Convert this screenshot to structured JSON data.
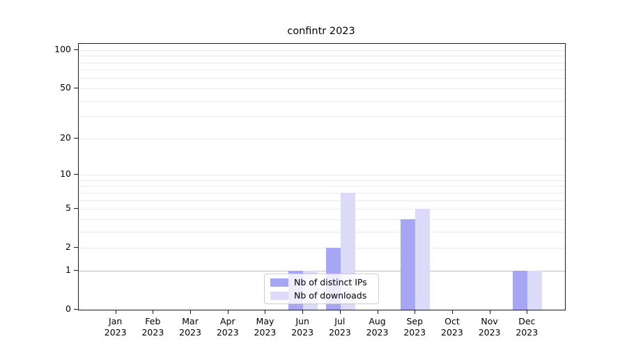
{
  "chart_data": {
    "type": "bar",
    "title": "confintr 2023",
    "categories": [
      "Jan 2023",
      "Feb 2023",
      "Mar 2023",
      "Apr 2023",
      "May 2023",
      "Jun 2023",
      "Jul 2023",
      "Aug 2023",
      "Sep 2023",
      "Oct 2023",
      "Nov 2023",
      "Dec 2023"
    ],
    "series": [
      {
        "name": "Nb of distinct IPs",
        "color": "#a6a6f5",
        "values": [
          0,
          0,
          0,
          0,
          0,
          1,
          2,
          0,
          4,
          0,
          0,
          1
        ]
      },
      {
        "name": "Nb of downloads",
        "color": "#dbdbf9",
        "values": [
          0,
          0,
          0,
          0,
          0,
          1,
          7,
          0,
          5,
          0,
          0,
          1
        ]
      }
    ],
    "xlabel": "",
    "ylabel": "",
    "yscale": "log1p",
    "ylim": [
      0,
      111.4
    ],
    "yticks": [
      0,
      1,
      2,
      5,
      10,
      20,
      50,
      100
    ],
    "grid": true,
    "gridline_values": [
      2,
      3,
      4,
      5,
      6,
      7,
      8,
      9,
      10,
      20,
      30,
      40,
      50,
      60,
      70,
      80,
      90,
      100
    ],
    "emphasized_gridline_values": [
      1
    ],
    "legend_position": "lower center"
  },
  "style": {
    "gridline_color": "#eaeaea",
    "emphasized_gridline_color": "#bdbdbd",
    "spine_color": "#1a1a1a"
  }
}
